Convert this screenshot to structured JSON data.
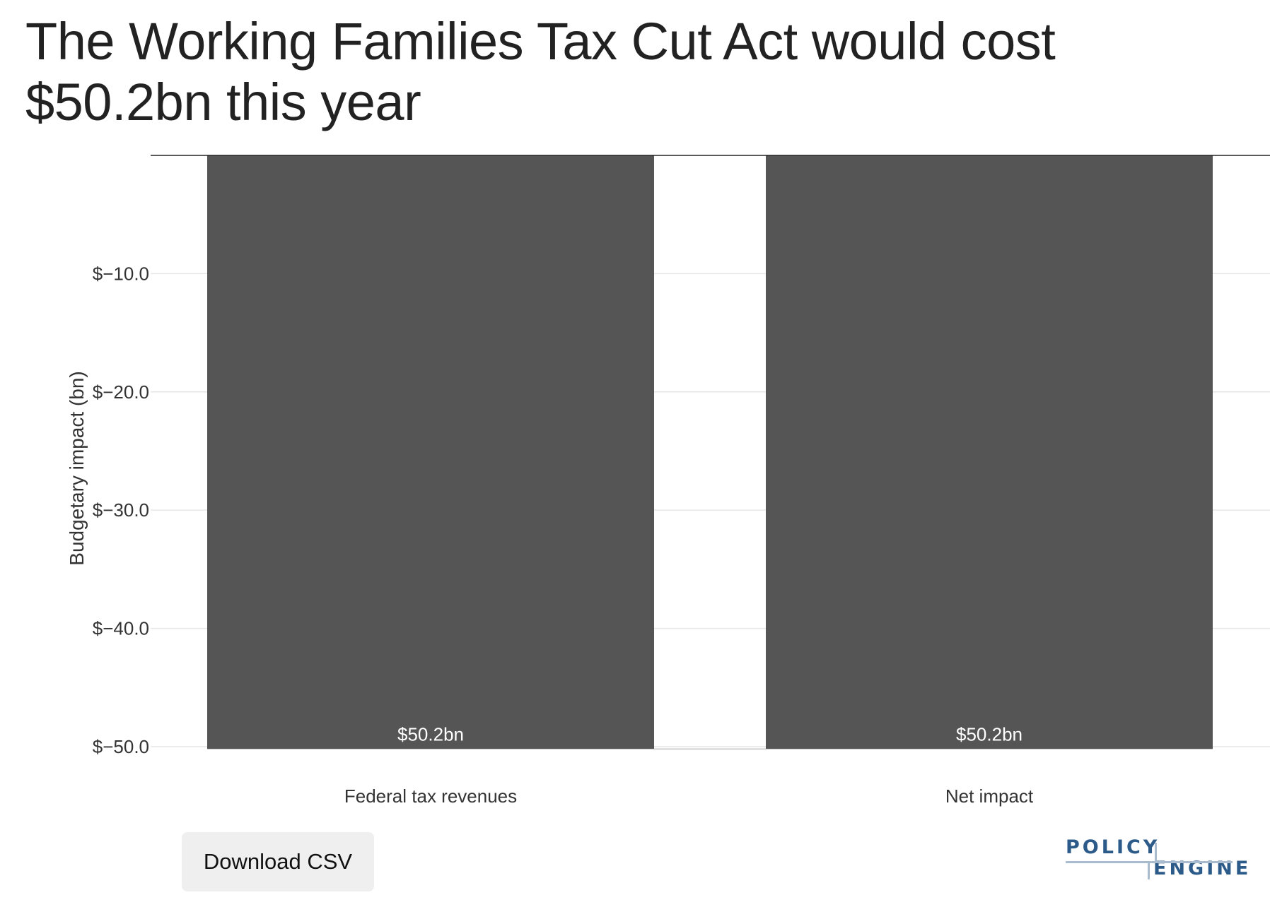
{
  "title": "The Working Families Tax Cut Act would cost $50.2bn this year",
  "download_label": "Download CSV",
  "logo": {
    "line1": "POLICY",
    "line2": "ENGINE",
    "text_color": "#2c5b8a",
    "accent_color": "#a9bccf"
  },
  "chart_data": {
    "type": "bar",
    "categories": [
      "Federal tax revenues",
      "",
      "Net impact"
    ],
    "values": [
      -50.2,
      0,
      -50.2
    ],
    "data_labels": [
      "$50.2bn",
      "",
      "$50.2bn"
    ],
    "category_labels": [
      "Federal tax revenues",
      "Net impact"
    ],
    "ylabel": "Budgetary impact (bn)",
    "xlabel": "",
    "ylim": [
      -50.3,
      0
    ],
    "yticks": [
      -10,
      -20,
      -30,
      -40,
      -50
    ],
    "ytick_labels": [
      "$−10.0",
      "$−20.0",
      "$−30.0",
      "$−40.0",
      "$−50.0"
    ],
    "grid": true,
    "bar_color": "#555555",
    "connector_color": "#ffffff"
  }
}
